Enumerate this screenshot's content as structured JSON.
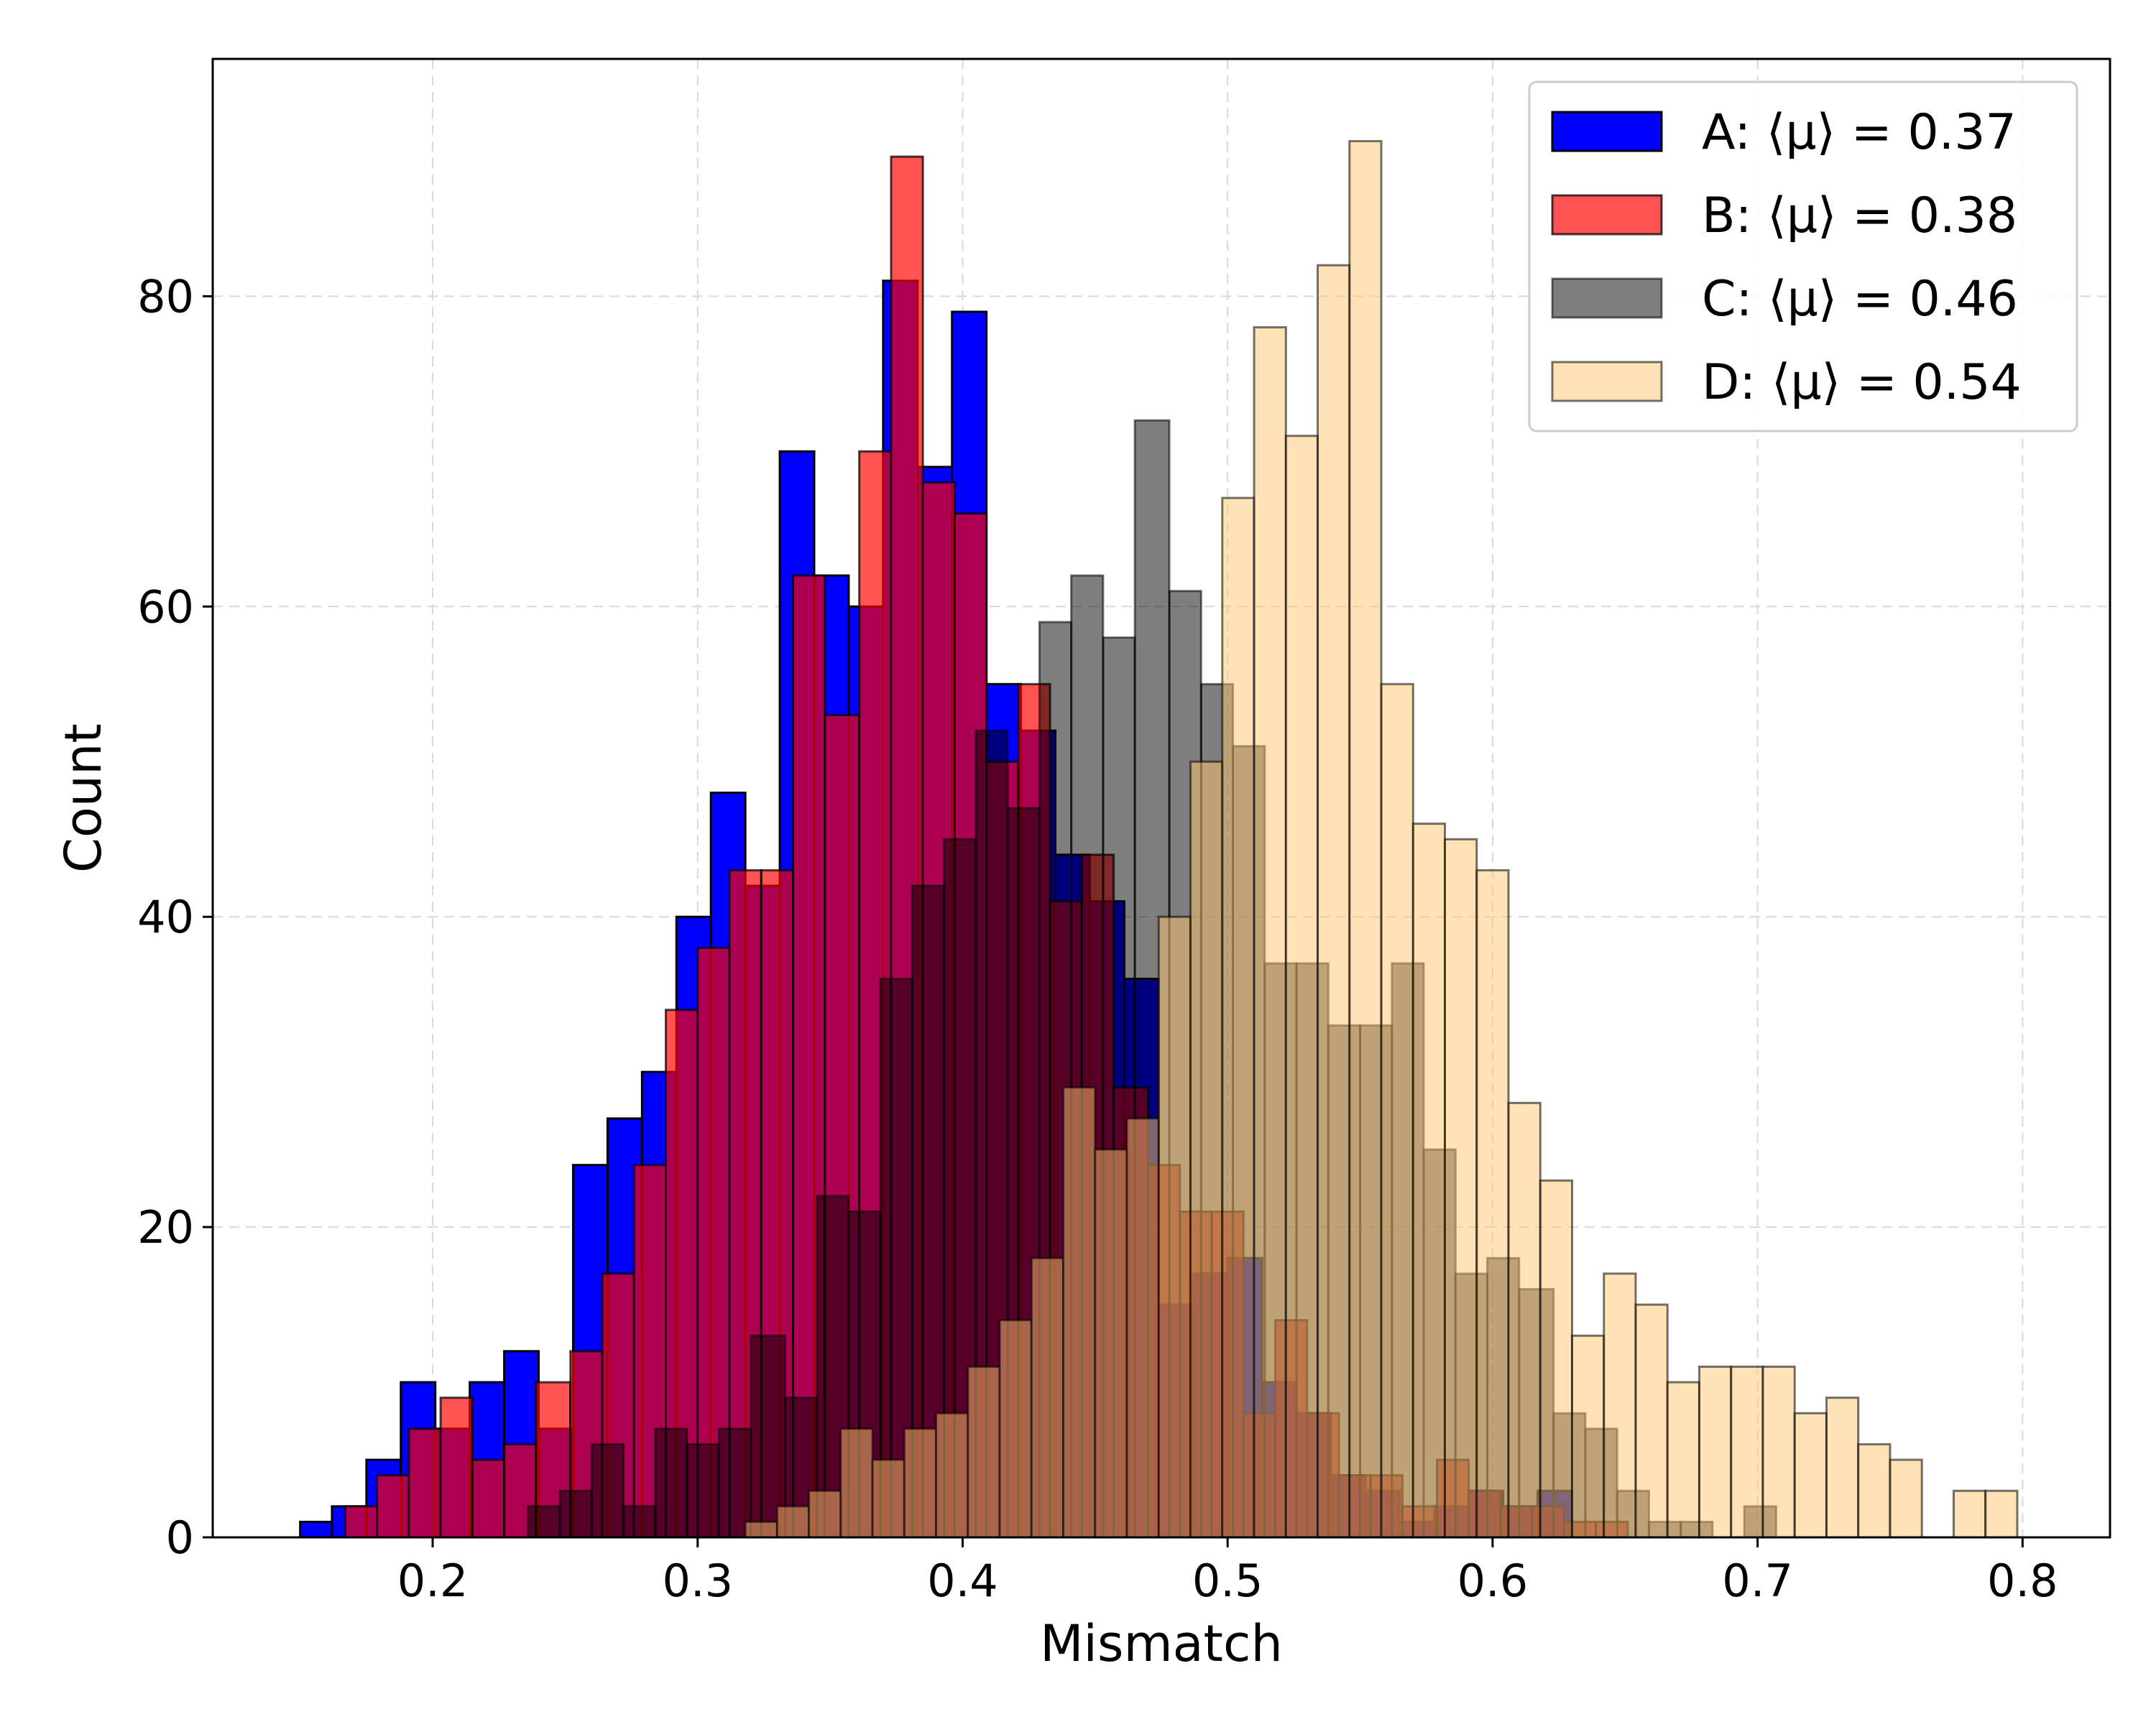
{
  "chart_data": {
    "type": "bar",
    "subtype": "overlapping-histogram",
    "title": "",
    "xlabel": "Mismatch",
    "ylabel": "Count",
    "xlim": [
      0.117,
      0.833
    ],
    "ylim": [
      0,
      95.3
    ],
    "grid": true,
    "legend_position": "top-right",
    "x_ticks": [
      {
        "value": 0.2,
        "label": "0.2"
      },
      {
        "value": 0.3,
        "label": "0.3"
      },
      {
        "value": 0.4,
        "label": "0.4"
      },
      {
        "value": 0.5,
        "label": "0.5"
      },
      {
        "value": 0.6,
        "label": "0.6"
      },
      {
        "value": 0.7,
        "label": "0.7"
      },
      {
        "value": 0.8,
        "label": "0.8"
      }
    ],
    "y_ticks": [
      {
        "value": 0,
        "label": "0"
      },
      {
        "value": 20,
        "label": "20"
      },
      {
        "value": 40,
        "label": "40"
      },
      {
        "value": 60,
        "label": "60"
      },
      {
        "value": 80,
        "label": "80"
      }
    ],
    "series": [
      {
        "name": "A",
        "legend_label": "A: ⟨μ⟩ = 0.37",
        "color": "#0000ff",
        "alpha": 1.0,
        "bins": [
          [
            0.15,
            0.162,
            1
          ],
          [
            0.162,
            0.175,
            2
          ],
          [
            0.175,
            0.188,
            5
          ],
          [
            0.188,
            0.201,
            10
          ],
          [
            0.201,
            0.214,
            7
          ],
          [
            0.214,
            0.227,
            10
          ],
          [
            0.227,
            0.24,
            12
          ],
          [
            0.24,
            0.253,
            7
          ],
          [
            0.253,
            0.266,
            24
          ],
          [
            0.266,
            0.279,
            27
          ],
          [
            0.279,
            0.292,
            30
          ],
          [
            0.292,
            0.305,
            40
          ],
          [
            0.305,
            0.318,
            48
          ],
          [
            0.318,
            0.331,
            42
          ],
          [
            0.331,
            0.344,
            70
          ],
          [
            0.344,
            0.357,
            62
          ],
          [
            0.357,
            0.37,
            60
          ],
          [
            0.37,
            0.383,
            81
          ],
          [
            0.383,
            0.396,
            69
          ],
          [
            0.396,
            0.409,
            79
          ],
          [
            0.409,
            0.422,
            55
          ],
          [
            0.422,
            0.435,
            52
          ],
          [
            0.435,
            0.448,
            44
          ],
          [
            0.448,
            0.461,
            41
          ],
          [
            0.461,
            0.474,
            36
          ],
          [
            0.474,
            0.487,
            15
          ],
          [
            0.487,
            0.5,
            17
          ],
          [
            0.5,
            0.513,
            18
          ],
          [
            0.513,
            0.526,
            10
          ],
          [
            0.526,
            0.539,
            8
          ],
          [
            0.539,
            0.552,
            4
          ],
          [
            0.552,
            0.565,
            3
          ],
          [
            0.565,
            0.578,
            1
          ],
          [
            0.578,
            0.591,
            2
          ],
          [
            0.591,
            0.604,
            3
          ],
          [
            0.604,
            0.617,
            2
          ],
          [
            0.617,
            0.63,
            3
          ]
        ]
      },
      {
        "name": "B",
        "legend_label": "B: ⟨μ⟩ = 0.38",
        "color": "#ff0000",
        "alpha": 0.68,
        "bins": [
          [
            0.167,
            0.179,
            2
          ],
          [
            0.179,
            0.191,
            4
          ],
          [
            0.191,
            0.203,
            7
          ],
          [
            0.203,
            0.215,
            9
          ],
          [
            0.215,
            0.227,
            5
          ],
          [
            0.227,
            0.239,
            6
          ],
          [
            0.239,
            0.252,
            10
          ],
          [
            0.252,
            0.264,
            12
          ],
          [
            0.264,
            0.276,
            17
          ],
          [
            0.276,
            0.288,
            24
          ],
          [
            0.288,
            0.3,
            34
          ],
          [
            0.3,
            0.312,
            38
          ],
          [
            0.312,
            0.324,
            43
          ],
          [
            0.324,
            0.336,
            43
          ],
          [
            0.336,
            0.348,
            62
          ],
          [
            0.348,
            0.361,
            53
          ],
          [
            0.361,
            0.373,
            70
          ],
          [
            0.373,
            0.385,
            89
          ],
          [
            0.385,
            0.397,
            68
          ],
          [
            0.397,
            0.409,
            66
          ],
          [
            0.409,
            0.421,
            50
          ],
          [
            0.421,
            0.433,
            55
          ],
          [
            0.433,
            0.445,
            41
          ],
          [
            0.445,
            0.457,
            44
          ],
          [
            0.457,
            0.47,
            29
          ],
          [
            0.47,
            0.482,
            24
          ],
          [
            0.482,
            0.494,
            21
          ],
          [
            0.494,
            0.506,
            21
          ],
          [
            0.506,
            0.518,
            8
          ],
          [
            0.518,
            0.53,
            14
          ],
          [
            0.53,
            0.542,
            8
          ],
          [
            0.542,
            0.554,
            4
          ],
          [
            0.554,
            0.566,
            4
          ],
          [
            0.566,
            0.579,
            2
          ],
          [
            0.579,
            0.591,
            5
          ],
          [
            0.591,
            0.603,
            3
          ],
          [
            0.603,
            0.615,
            2
          ],
          [
            0.615,
            0.627,
            2
          ],
          [
            0.627,
            0.639,
            1
          ],
          [
            0.639,
            0.651,
            1
          ]
        ]
      },
      {
        "name": "C",
        "legend_label": "C: ⟨μ⟩ = 0.46",
        "color": "#000000",
        "alpha": 0.5,
        "bins": [
          [
            0.236,
            0.248,
            2
          ],
          [
            0.248,
            0.26,
            3
          ],
          [
            0.26,
            0.272,
            6
          ],
          [
            0.272,
            0.284,
            2
          ],
          [
            0.284,
            0.296,
            7
          ],
          [
            0.296,
            0.308,
            6
          ],
          [
            0.308,
            0.32,
            7
          ],
          [
            0.32,
            0.333,
            13
          ],
          [
            0.333,
            0.345,
            9
          ],
          [
            0.345,
            0.357,
            22
          ],
          [
            0.357,
            0.369,
            21
          ],
          [
            0.369,
            0.381,
            36
          ],
          [
            0.381,
            0.393,
            42
          ],
          [
            0.393,
            0.405,
            45
          ],
          [
            0.405,
            0.417,
            52
          ],
          [
            0.417,
            0.429,
            47
          ],
          [
            0.429,
            0.441,
            59
          ],
          [
            0.441,
            0.453,
            62
          ],
          [
            0.453,
            0.465,
            58
          ],
          [
            0.465,
            0.478,
            72
          ],
          [
            0.478,
            0.49,
            61
          ],
          [
            0.49,
            0.502,
            55
          ],
          [
            0.502,
            0.514,
            51
          ],
          [
            0.514,
            0.526,
            37
          ],
          [
            0.526,
            0.538,
            37
          ],
          [
            0.538,
            0.55,
            33
          ],
          [
            0.55,
            0.562,
            33
          ],
          [
            0.562,
            0.574,
            37
          ],
          [
            0.574,
            0.586,
            25
          ],
          [
            0.586,
            0.598,
            17
          ],
          [
            0.598,
            0.61,
            18
          ],
          [
            0.61,
            0.623,
            16
          ],
          [
            0.623,
            0.635,
            8
          ],
          [
            0.635,
            0.647,
            7
          ],
          [
            0.647,
            0.659,
            3
          ],
          [
            0.659,
            0.671,
            1
          ],
          [
            0.671,
            0.683,
            1
          ],
          [
            0.683,
            0.695,
            0
          ],
          [
            0.695,
            0.707,
            2
          ]
        ]
      },
      {
        "name": "D",
        "legend_label": "D: ⟨μ⟩ = 0.54",
        "color": "#ffc870",
        "alpha": 0.5,
        "bins": [
          [
            0.318,
            0.33,
            1
          ],
          [
            0.33,
            0.342,
            2
          ],
          [
            0.342,
            0.354,
            3
          ],
          [
            0.354,
            0.366,
            7
          ],
          [
            0.366,
            0.378,
            5
          ],
          [
            0.378,
            0.39,
            7
          ],
          [
            0.39,
            0.402,
            8
          ],
          [
            0.402,
            0.414,
            11
          ],
          [
            0.414,
            0.426,
            14
          ],
          [
            0.426,
            0.438,
            18
          ],
          [
            0.438,
            0.45,
            29
          ],
          [
            0.45,
            0.462,
            25
          ],
          [
            0.462,
            0.474,
            27
          ],
          [
            0.474,
            0.486,
            40
          ],
          [
            0.486,
            0.498,
            50
          ],
          [
            0.498,
            0.51,
            67
          ],
          [
            0.51,
            0.522,
            78
          ],
          [
            0.522,
            0.534,
            71
          ],
          [
            0.534,
            0.546,
            82
          ],
          [
            0.546,
            0.558,
            90
          ],
          [
            0.558,
            0.57,
            55
          ],
          [
            0.57,
            0.582,
            46
          ],
          [
            0.582,
            0.594,
            45
          ],
          [
            0.594,
            0.606,
            43
          ],
          [
            0.606,
            0.618,
            28
          ],
          [
            0.618,
            0.63,
            23
          ],
          [
            0.63,
            0.642,
            13
          ],
          [
            0.642,
            0.654,
            17
          ],
          [
            0.654,
            0.666,
            15
          ],
          [
            0.666,
            0.678,
            10
          ],
          [
            0.678,
            0.69,
            11
          ],
          [
            0.69,
            0.702,
            11
          ],
          [
            0.702,
            0.714,
            11
          ],
          [
            0.714,
            0.726,
            8
          ],
          [
            0.726,
            0.738,
            9
          ],
          [
            0.738,
            0.75,
            6
          ],
          [
            0.75,
            0.762,
            5
          ],
          [
            0.762,
            0.774,
            0
          ],
          [
            0.774,
            0.786,
            3
          ],
          [
            0.786,
            0.798,
            3
          ]
        ]
      }
    ]
  }
}
